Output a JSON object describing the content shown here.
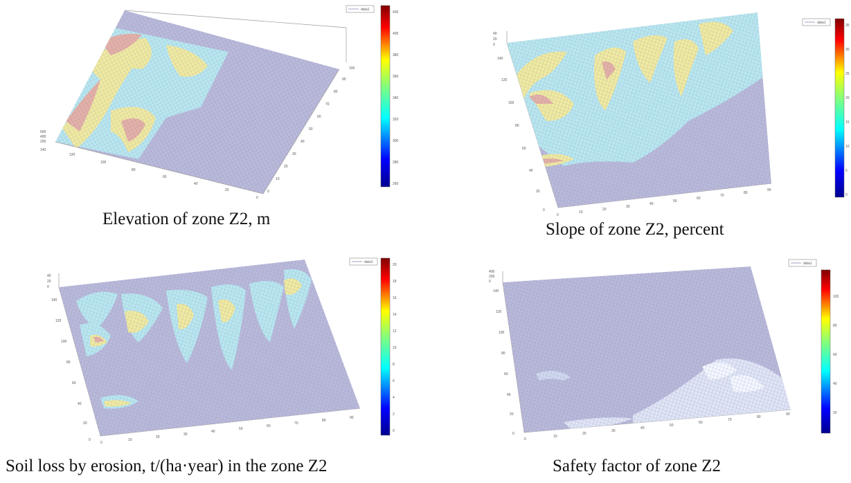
{
  "colors": {
    "low": "#b9b9d9",
    "mesh": "#8a8ab8",
    "colormap": [
      "#00008f",
      "#0000ff",
      "#00ffff",
      "#7fff7f",
      "#ffff00",
      "#ff0000",
      "#800000"
    ]
  },
  "chart_data": [
    {
      "type": "surface",
      "title": "Elevation of zone Z2, m",
      "legend_label": "data1",
      "colorbar_ticks": [
        "420",
        "400",
        "380",
        "360",
        "340",
        "320",
        "300",
        "280",
        "260"
      ],
      "x_ticks": [
        "0",
        "10",
        "20",
        "30",
        "40",
        "50",
        "60",
        "70",
        "80",
        "90",
        "100"
      ],
      "y_ticks": [
        "140",
        "120",
        "100",
        "80",
        "60",
        "40",
        "20",
        "0"
      ],
      "z_ticks": [
        "600",
        "400",
        "200",
        "0"
      ]
    },
    {
      "type": "surface",
      "title": "Slope of zone Z2, percent",
      "legend_label": "data1",
      "colorbar_ticks": [
        "35",
        "30",
        "25",
        "20",
        "15",
        "10",
        "5",
        "0"
      ],
      "x_ticks": [
        "0",
        "10",
        "20",
        "30",
        "40",
        "50",
        "60",
        "70",
        "80",
        "90"
      ],
      "y_ticks": [
        "140",
        "120",
        "100",
        "80",
        "60",
        "40",
        "20",
        "0"
      ],
      "z_ticks": [
        "40",
        "20",
        "0"
      ]
    },
    {
      "type": "surface",
      "title": "Soil loss by erosion, t/(ha·year) in the zone Z2",
      "legend_label": "data1",
      "colorbar_ticks": [
        "20",
        "18",
        "16",
        "14",
        "12",
        "10",
        "8",
        "6",
        "4",
        "2",
        "0"
      ],
      "x_ticks": [
        "0",
        "10",
        "20",
        "30",
        "40",
        "50",
        "60",
        "70",
        "80",
        "90"
      ],
      "y_ticks": [
        "140",
        "120",
        "100",
        "80",
        "60",
        "40",
        "20",
        "0"
      ],
      "z_ticks": [
        "40",
        "20",
        "0"
      ]
    },
    {
      "type": "surface",
      "title": "Safety factor of zone Z2",
      "legend_label": "data1",
      "colorbar_ticks": [
        "100",
        "80",
        "60",
        "40",
        "20"
      ],
      "x_ticks": [
        "0",
        "10",
        "20",
        "30",
        "40",
        "50",
        "60",
        "70",
        "80",
        "90"
      ],
      "y_ticks": [
        "140",
        "120",
        "100",
        "80",
        "60",
        "40",
        "20",
        "0"
      ],
      "z_ticks": [
        "400",
        "200",
        "0"
      ]
    }
  ]
}
